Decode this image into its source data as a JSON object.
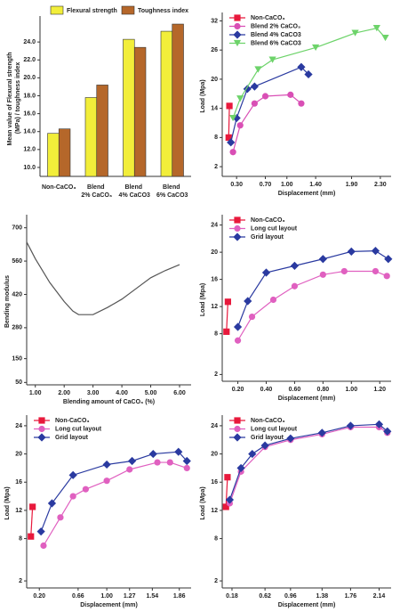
{
  "chart_data": [
    {
      "type": "bar",
      "ylabel": "Mean value of Flexural strength (MPa) / toughness index",
      "categories": [
        "Non-CaCO₃",
        "Blend 2% CaCO₃",
        "Blend 4% CaCO3",
        "Blend 6% CaCO3"
      ],
      "series": [
        {
          "name": "Flexural strength",
          "color": "#f2ee3a",
          "values": [
            13.8,
            17.8,
            24.3,
            25.2
          ]
        },
        {
          "name": "Toughness index",
          "color": "#b5672a",
          "values": [
            14.3,
            19.2,
            23.4,
            26.0
          ]
        }
      ],
      "ylim": [
        9,
        26.5
      ],
      "yticks": [
        {
          "value": 10,
          "label": "10.0"
        },
        {
          "value": 12,
          "label": "12.0"
        },
        {
          "value": 14,
          "label": "14.0"
        },
        {
          "value": 16,
          "label": "16.0"
        },
        {
          "value": 18,
          "label": "18.0"
        },
        {
          "value": 20,
          "label": "20.0"
        },
        {
          "value": 22,
          "label": "22.0"
        },
        {
          "value": 24,
          "label": "24.0"
        }
      ],
      "legend": "top"
    },
    {
      "type": "line",
      "xlabel": "Displacement (mm)",
      "ylabel": "Load (Mpa)",
      "series": [
        {
          "name": "Non-CaCO₃",
          "color": "#e8193c",
          "marker": "square",
          "x": [
            0.19,
            0.2
          ],
          "values": [
            8,
            14.5
          ]
        },
        {
          "name": "Blend 2% CaCO₃",
          "color": "#d94fb5",
          "marker": "circle",
          "x": [
            0.25,
            0.35,
            0.55,
            0.7,
            1.05,
            1.2
          ],
          "values": [
            5,
            10.5,
            15,
            16.5,
            16.8,
            15
          ]
        },
        {
          "name": "Blend 4% CaCO3",
          "color": "#2a3aa0",
          "marker": "diamond",
          "x": [
            0.22,
            0.3,
            0.45,
            0.55,
            1.2,
            1.3
          ],
          "values": [
            7,
            12,
            18,
            18.5,
            22.5,
            21
          ]
        },
        {
          "name": "Blend 6% CaCO3",
          "color": "#6dd36a",
          "marker": "triangle",
          "x": [
            0.25,
            0.35,
            0.6,
            0.8,
            1.4,
            1.95,
            2.25,
            2.37
          ],
          "values": [
            12,
            16,
            22,
            24,
            26.5,
            29.5,
            30.5,
            28.5
          ]
        }
      ],
      "xlim": [
        0.1,
        2.45
      ],
      "ylim": [
        0,
        33
      ],
      "xticks": [
        {
          "value": 0.3,
          "label": "0.30"
        },
        {
          "value": 0.7,
          "label": "0.70"
        },
        {
          "value": 1.0,
          "label": "1.00"
        },
        {
          "value": 1.4,
          "label": "1.40"
        },
        {
          "value": 1.9,
          "label": "1.90"
        },
        {
          "value": 2.3,
          "label": "2.30"
        }
      ],
      "yticks": [
        2,
        8,
        14,
        20,
        26,
        32
      ],
      "legend": "upper left"
    },
    {
      "type": "line",
      "xlabel": "Blending amount of CaCO₃ (%)",
      "ylabel": "Bending modulus",
      "series": [
        {
          "color": "#555555",
          "x": [
            0.7,
            1.0,
            1.5,
            2.0,
            2.3,
            2.5,
            3.0,
            3.5,
            4.0,
            4.5,
            5.0,
            5.5,
            6.0
          ],
          "values": [
            640,
            570,
            470,
            390,
            350,
            335,
            335,
            365,
            400,
            445,
            490,
            520,
            545
          ]
        }
      ],
      "xlim": [
        0.7,
        6.4
      ],
      "ylim": [
        40,
        740
      ],
      "xticks": [
        {
          "value": 1,
          "label": "1.00"
        },
        {
          "value": 2,
          "label": "2.00"
        },
        {
          "value": 3,
          "label": "3.00"
        },
        {
          "value": 4,
          "label": "4.00"
        },
        {
          "value": 5,
          "label": "5.00"
        },
        {
          "value": 6,
          "label": "6.00"
        }
      ],
      "yticks": [
        50,
        150,
        280,
        420,
        560,
        700
      ]
    },
    {
      "type": "line",
      "xlabel": "Displacement (mm)",
      "ylabel": "Load (Mpa)",
      "series": [
        {
          "name": "Non-CaCO₃",
          "color": "#e8193c",
          "marker": "square",
          "x": [
            0.12,
            0.13
          ],
          "values": [
            8.3,
            12.7
          ]
        },
        {
          "name": "Long cut layout",
          "color": "#e060c0",
          "marker": "circle",
          "x": [
            0.2,
            0.3,
            0.45,
            0.6,
            0.8,
            0.95,
            1.17,
            1.25
          ],
          "values": [
            7,
            10.5,
            13,
            15,
            16.7,
            17.2,
            17.2,
            16.5
          ]
        },
        {
          "name": "Grid layout",
          "color": "#2a3aa0",
          "marker": "diamond",
          "x": [
            0.2,
            0.27,
            0.4,
            0.6,
            0.8,
            1.0,
            1.17,
            1.26
          ],
          "values": [
            9,
            12.8,
            17,
            18,
            19,
            20.1,
            20.2,
            19
          ]
        }
      ],
      "xlim": [
        0.09,
        1.28
      ],
      "ylim": [
        1,
        25
      ],
      "xticks": [
        {
          "value": 0.2,
          "label": "0.20"
        },
        {
          "value": 0.4,
          "label": "0.40"
        },
        {
          "value": 0.6,
          "label": "0.60"
        },
        {
          "value": 0.8,
          "label": "0.80"
        },
        {
          "value": 1.0,
          "label": "1.00"
        },
        {
          "value": 1.2,
          "label": "1.20"
        }
      ],
      "yticks": [
        2,
        8,
        12,
        16,
        20,
        24
      ],
      "legend": "upper left"
    },
    {
      "type": "line",
      "xlabel": "Displacement (mm)",
      "ylabel": "Load (Mpa)",
      "series": [
        {
          "name": "Non-CaCO₃",
          "color": "#e8193c",
          "marker": "square",
          "x": [
            0.1,
            0.12
          ],
          "values": [
            8.3,
            12.5
          ]
        },
        {
          "name": "Long cut layout",
          "color": "#e060c0",
          "marker": "circle",
          "x": [
            0.25,
            0.45,
            0.6,
            0.75,
            1.0,
            1.27,
            1.6,
            1.75,
            1.95
          ],
          "values": [
            7,
            11,
            14,
            15,
            16.2,
            17.8,
            18.8,
            18.8,
            18
          ]
        },
        {
          "name": "Grid layout",
          "color": "#2a3aa0",
          "marker": "diamond",
          "x": [
            0.22,
            0.35,
            0.6,
            1.0,
            1.3,
            1.55,
            1.85,
            1.95
          ],
          "values": [
            9,
            13,
            17,
            18.5,
            19,
            20,
            20.3,
            19
          ]
        }
      ],
      "xlim": [
        0.05,
        2.0
      ],
      "ylim": [
        1,
        25
      ],
      "xticks": [
        {
          "value": 0.2,
          "label": "0.20"
        },
        {
          "value": 0.66,
          "label": "0.66"
        },
        {
          "value": 1.0,
          "label": "1.00"
        },
        {
          "value": 1.27,
          "label": "1.27"
        },
        {
          "value": 1.54,
          "label": "1.54"
        },
        {
          "value": 1.86,
          "label": "1.86"
        }
      ],
      "yticks": [
        2,
        8,
        12,
        16,
        20,
        24
      ],
      "legend": "upper left"
    },
    {
      "type": "line",
      "xlabel": "Displacement (mm)",
      "ylabel": "Load (Mpa)",
      "series": [
        {
          "name": "Non-CaCO₃",
          "color": "#e8193c",
          "marker": "square",
          "x": [
            0.1,
            0.12
          ],
          "values": [
            12.5,
            16.7
          ]
        },
        {
          "name": "Long cut layout",
          "color": "#e060c0",
          "marker": "circle",
          "x": [
            0.15,
            0.3,
            0.62,
            0.96,
            1.38,
            1.76,
            2.14,
            2.25
          ],
          "values": [
            13,
            17.5,
            21,
            22,
            22.8,
            23.8,
            23.8,
            23
          ]
        },
        {
          "name": "Grid layout",
          "color": "#2a3aa0",
          "marker": "diamond",
          "x": [
            0.15,
            0.3,
            0.45,
            0.62,
            0.96,
            1.38,
            1.76,
            2.14,
            2.25
          ],
          "values": [
            13.5,
            18,
            20,
            21.2,
            22.2,
            23,
            24,
            24.2,
            23.2
          ]
        }
      ],
      "xlim": [
        0.05,
        2.3
      ],
      "ylim": [
        1,
        25
      ],
      "xticks": [
        {
          "value": 0.18,
          "label": "0.18"
        },
        {
          "value": 0.62,
          "label": "0.62"
        },
        {
          "value": 0.96,
          "label": "0.96"
        },
        {
          "value": 1.38,
          "label": "1.38"
        },
        {
          "value": 1.76,
          "label": "1.76"
        },
        {
          "value": 2.14,
          "label": "2.14"
        }
      ],
      "yticks": [
        2,
        8,
        12,
        16,
        20,
        24
      ],
      "legend": "upper left"
    }
  ]
}
